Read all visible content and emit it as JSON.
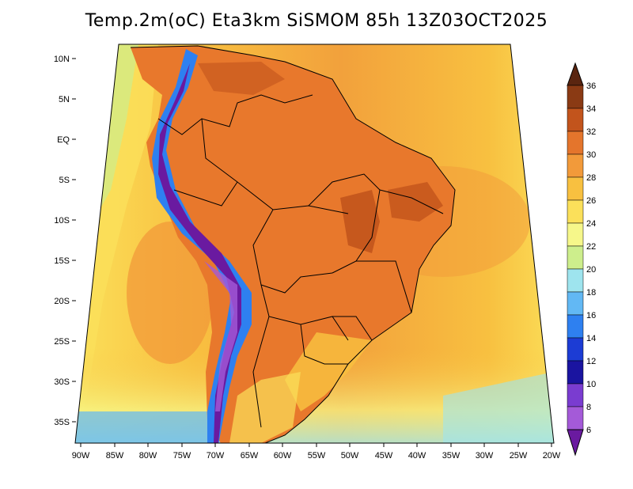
{
  "title": "Temp.2m(oC) Eta3km SiSMOM 85h 13Z03OCT2025",
  "lat_labels": [
    "10N",
    "5N",
    "EQ",
    "5S",
    "10S",
    "15S",
    "20S",
    "25S",
    "30S",
    "35S"
  ],
  "lon_labels": [
    "90W",
    "85W",
    "80W",
    "75W",
    "70W",
    "65W",
    "60W",
    "55W",
    "50W",
    "45W",
    "40W",
    "35W",
    "30W",
    "25W",
    "20W"
  ],
  "colorbar": {
    "labels": [
      "36",
      "34",
      "32",
      "30",
      "28",
      "26",
      "24",
      "22",
      "20",
      "18",
      "16",
      "14",
      "12",
      "10",
      "8",
      "6"
    ],
    "colors_top_to_bottom": [
      "#5a2510",
      "#8a3a14",
      "#c2541c",
      "#e4752c",
      "#f29a3a",
      "#f8c040",
      "#fbe05a",
      "#f6f78a",
      "#cdee8c",
      "#9ee4ee",
      "#62b8f4",
      "#2e80f0",
      "#1c3cd4",
      "#1a14a0",
      "#7a3cd0",
      "#a45ad8",
      "#6a1aa0"
    ]
  },
  "colors": {
    "ocean_warm": "#f2a13c",
    "ocean_mid": "#f8c040",
    "ocean_cool": "#fbe05a",
    "land_hot": "#e8782c",
    "land_very_hot": "#c2541c",
    "andes_cold": "#6a1aa0",
    "andes_cool": "#2e80f0",
    "border": "#000000"
  }
}
